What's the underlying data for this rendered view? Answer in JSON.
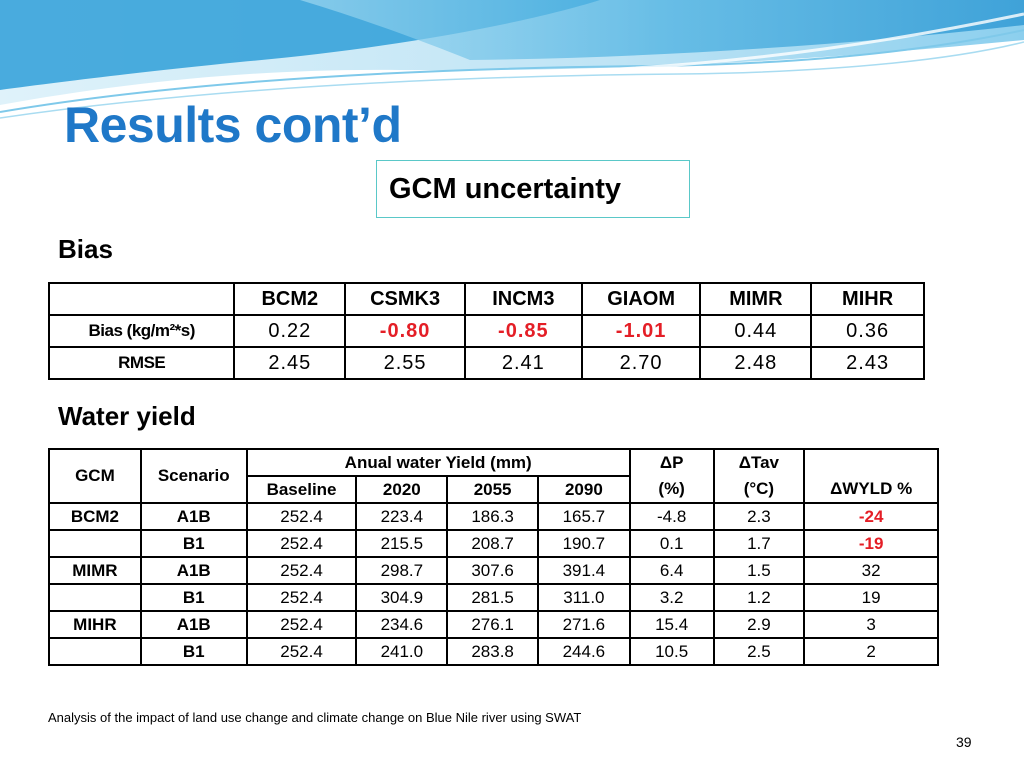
{
  "slide": {
    "title": "Results cont’d",
    "subtitle": "GCM uncertainty",
    "footnote": "Analysis of the impact of land use change and climate change on Blue Nile river using SWAT",
    "page_number": "39"
  },
  "bias_section": {
    "label": "Bias",
    "columns": [
      "",
      "BCM2",
      "CSMK3",
      "INCM3",
      "GIAOM",
      "MIMR",
      "MIHR"
    ],
    "rows": [
      {
        "label": "Bias (kg/m²*s)",
        "values": [
          "0.22",
          "-0.80",
          "-0.85",
          "-1.01",
          "0.44",
          "0.36"
        ]
      },
      {
        "label": "RMSE",
        "values": [
          "2.45",
          "2.55",
          "2.41",
          "2.70",
          "2.48",
          "2.43"
        ]
      }
    ]
  },
  "water_yield_section": {
    "label": "Water yield",
    "headers": {
      "gcm": "GCM",
      "scenario": "Scenario",
      "annual_group": "Anual water Yield (mm)",
      "baseline": "Baseline",
      "y2020": "2020",
      "y2055": "2055",
      "y2090": "2090",
      "dp": "ΔP",
      "dp_unit": "(%)",
      "dtav": "ΔTav",
      "dtav_unit": "(°C)",
      "dwyld": "ΔWYLD %"
    },
    "rows": [
      {
        "gcm": "BCM2",
        "scenario": "A1B",
        "baseline": "252.4",
        "y2020": "223.4",
        "y2055": "186.3",
        "y2090": "165.7",
        "dp": "-4.8",
        "dtav": "2.3",
        "dwyld": "-24"
      },
      {
        "gcm": "",
        "scenario": "B1",
        "baseline": "252.4",
        "y2020": "215.5",
        "y2055": "208.7",
        "y2090": "190.7",
        "dp": "0.1",
        "dtav": "1.7",
        "dwyld": "-19"
      },
      {
        "gcm": "MIMR",
        "scenario": "A1B",
        "baseline": "252.4",
        "y2020": "298.7",
        "y2055": "307.6",
        "y2090": "391.4",
        "dp": "6.4",
        "dtav": "1.5",
        "dwyld": "32"
      },
      {
        "gcm": "",
        "scenario": "B1",
        "baseline": "252.4",
        "y2020": "304.9",
        "y2055": "281.5",
        "y2090": "311.0",
        "dp": "3.2",
        "dtav": "1.2",
        "dwyld": "19"
      },
      {
        "gcm": "MIHR",
        "scenario": "A1B",
        "baseline": "252.4",
        "y2020": "234.6",
        "y2055": "276.1",
        "y2090": "271.6",
        "dp": "15.4",
        "dtav": "2.9",
        "dwyld": "3"
      },
      {
        "gcm": "",
        "scenario": "B1",
        "baseline": "252.4",
        "y2020": "241.0",
        "y2055": "283.8",
        "y2090": "244.6",
        "dp": "10.5",
        "dtav": "2.5",
        "dwyld": "2"
      }
    ]
  },
  "colors": {
    "title": "#1f78c8",
    "negative_highlight": "#e41e26",
    "subtitle_border": "#5ac8c8",
    "banner_light": "#cdeaf7",
    "banner_dark": "#1e8fcf"
  }
}
